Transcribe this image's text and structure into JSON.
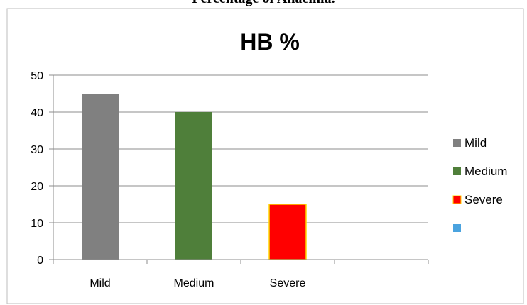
{
  "caption": "Percentage of Anaemia.",
  "chart_data": {
    "type": "bar",
    "title": "HB %",
    "xlabel": "",
    "ylabel": "",
    "categories": [
      "Mild",
      "Medium",
      "Severe"
    ],
    "values": [
      45,
      40,
      15
    ],
    "bar_colors": [
      "#808080",
      "#4f7f3a",
      "#ff0000"
    ],
    "ylim": [
      0,
      50
    ],
    "yticks": [
      0,
      10,
      20,
      30,
      40,
      50
    ],
    "grid": true,
    "legend_position": "right",
    "legend": [
      {
        "label": "Mild",
        "color": "#808080"
      },
      {
        "label": "Medium",
        "color": "#4f7f3a"
      },
      {
        "label": "Severe",
        "color": "#ff0000"
      },
      {
        "label": "",
        "color": "#4aa3df"
      }
    ]
  }
}
